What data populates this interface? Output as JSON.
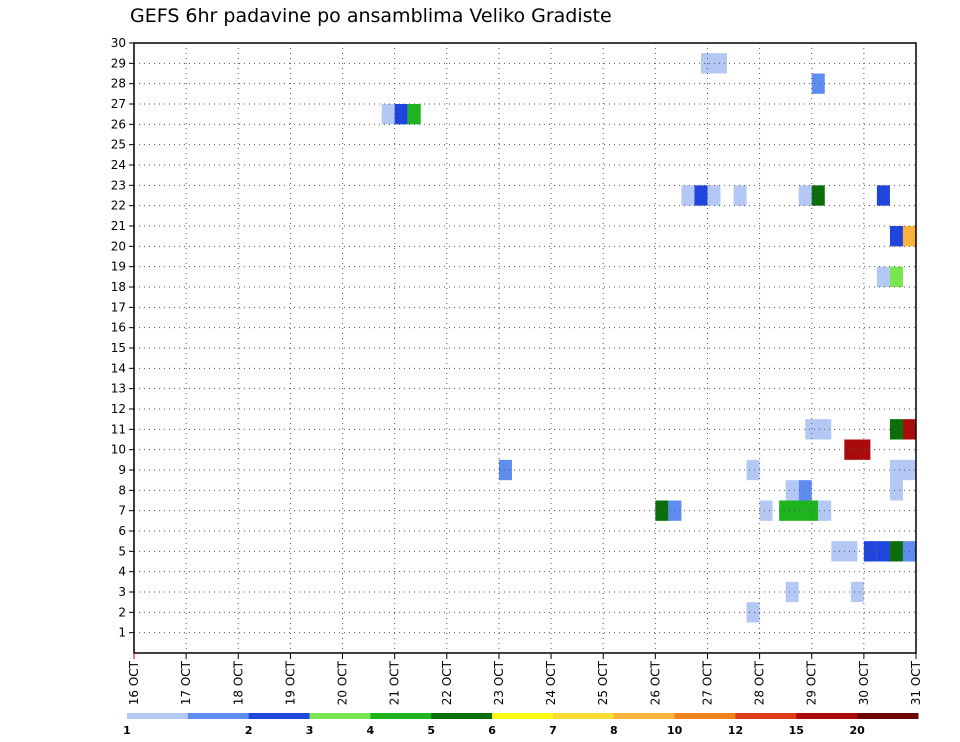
{
  "chart_data": {
    "type": "heatmap",
    "title": "GEFS 6hr padavine po ansamblima Veliko Gradiste",
    "xlabel": "",
    "ylabel": "",
    "x_ticks": [
      "16 OCT",
      "17 OCT",
      "18 OCT",
      "19 OCT",
      "20 OCT",
      "21 OCT",
      "22 OCT",
      "23 OCT",
      "24 OCT",
      "25 OCT",
      "26 OCT",
      "27 OCT",
      "28 OCT",
      "29 OCT",
      "30 OCT",
      "31 OCT"
    ],
    "y_ticks": [
      "1",
      "2",
      "3",
      "4",
      "5",
      "6",
      "7",
      "8",
      "9",
      "10",
      "11",
      "12",
      "13",
      "14",
      "15",
      "16",
      "17",
      "18",
      "19",
      "20",
      "21",
      "22",
      "23",
      "24",
      "25",
      "26",
      "27",
      "28",
      "29",
      "30"
    ],
    "xlim": [
      0,
      60
    ],
    "ylim": [
      0,
      30
    ],
    "grid": true,
    "legend": {
      "placement": "bottom",
      "levels": [
        {
          "label": "1",
          "color": "#b4c8f5"
        },
        {
          "label": "2",
          "color": "#5f8cf0"
        },
        {
          "label": "3",
          "color": "#1e46dc"
        },
        {
          "label": "4",
          "color": "#78e650"
        },
        {
          "label": "5",
          "color": "#1eb41e"
        },
        {
          "label": "6",
          "color": "#0a6e0a"
        },
        {
          "label": "7",
          "color": "#fafa14"
        },
        {
          "label": "8",
          "color": "#fadc32"
        },
        {
          "label": "10",
          "color": "#fab43c"
        },
        {
          "label": "12",
          "color": "#f0821e"
        },
        {
          "label": "15",
          "color": "#dc3c14"
        },
        {
          "label": "20",
          "color": "#aa0a0a"
        },
        {
          "label": "",
          "color": "#6e0505"
        }
      ]
    },
    "cells": [
      {
        "x": 44.5,
        "y": 29,
        "level": 1,
        "width": 2
      },
      {
        "x": 52.5,
        "y": 28,
        "level": 2
      },
      {
        "x": 19.5,
        "y": 26.5,
        "level": 1
      },
      {
        "x": 20.5,
        "y": 26.5,
        "level": 3
      },
      {
        "x": 21.5,
        "y": 26.5,
        "level": 5
      },
      {
        "x": 42.5,
        "y": 22.5,
        "level": 1
      },
      {
        "x": 43.5,
        "y": 22.5,
        "level": 3
      },
      {
        "x": 44.5,
        "y": 22.5,
        "level": 1
      },
      {
        "x": 46.5,
        "y": 22.5,
        "level": 1
      },
      {
        "x": 51.5,
        "y": 22.5,
        "level": 1
      },
      {
        "x": 52.5,
        "y": 22.5,
        "level": 6
      },
      {
        "x": 57.5,
        "y": 22.5,
        "level": 3
      },
      {
        "x": 58.5,
        "y": 20.5,
        "level": 3
      },
      {
        "x": 59.5,
        "y": 20.5,
        "level": 10
      },
      {
        "x": 57.5,
        "y": 18.5,
        "level": 1
      },
      {
        "x": 58.5,
        "y": 18.5,
        "level": 4
      },
      {
        "x": 52.5,
        "y": 11,
        "level": 1,
        "width": 2
      },
      {
        "x": 58.5,
        "y": 11,
        "level": 6
      },
      {
        "x": 59.5,
        "y": 11,
        "level": 20
      },
      {
        "x": 55.5,
        "y": 10,
        "level": 20,
        "width": 2
      },
      {
        "x": 28.5,
        "y": 9,
        "level": 2
      },
      {
        "x": 47.5,
        "y": 9,
        "level": 1
      },
      {
        "x": 58.5,
        "y": 8.5,
        "level": 1,
        "height": 2
      },
      {
        "x": 59.5,
        "y": 9,
        "level": 1
      },
      {
        "x": 50.5,
        "y": 8,
        "level": 1
      },
      {
        "x": 51.5,
        "y": 8,
        "level": 2
      },
      {
        "x": 40.5,
        "y": 7,
        "level": 6
      },
      {
        "x": 41.5,
        "y": 7,
        "level": 2
      },
      {
        "x": 48.5,
        "y": 7,
        "level": 1
      },
      {
        "x": 51.0,
        "y": 7,
        "level": 5,
        "width": 3
      },
      {
        "x": 53.0,
        "y": 7,
        "level": 1
      },
      {
        "x": 54.5,
        "y": 5,
        "level": 1,
        "width": 2
      },
      {
        "x": 56.5,
        "y": 5,
        "level": 3
      },
      {
        "x": 57.5,
        "y": 5,
        "level": 3
      },
      {
        "x": 58.5,
        "y": 5,
        "level": 6
      },
      {
        "x": 59.5,
        "y": 5,
        "level": 2
      },
      {
        "x": 50.5,
        "y": 3,
        "level": 1
      },
      {
        "x": 55.5,
        "y": 3,
        "level": 1
      },
      {
        "x": 47.5,
        "y": 2,
        "level": 1
      }
    ]
  }
}
